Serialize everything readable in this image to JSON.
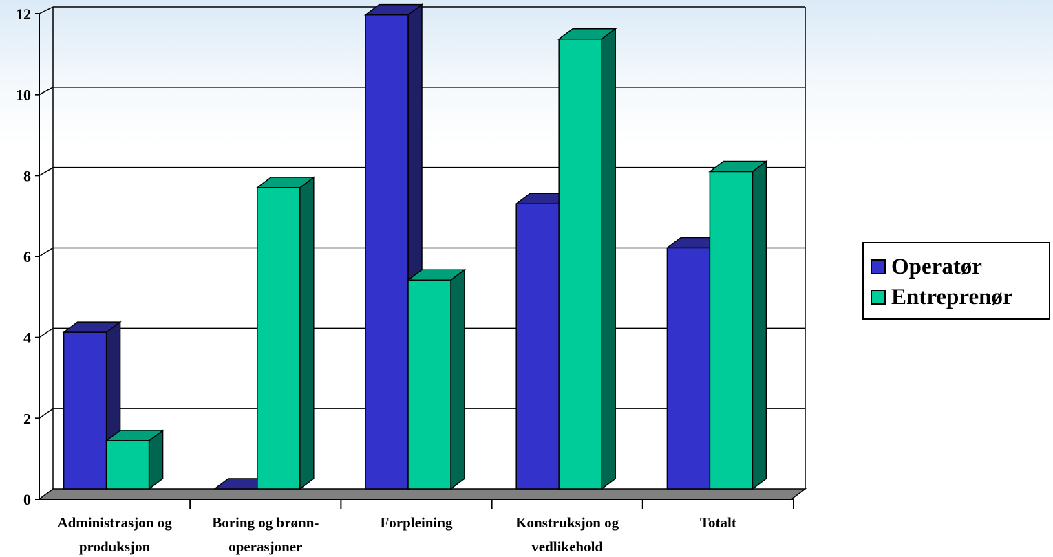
{
  "chart_data": {
    "type": "bar",
    "categories": [
      [
        "Administrasjon og",
        "produksjon"
      ],
      [
        "Boring og brønn-",
        "operasjoner"
      ],
      [
        "Forpleining"
      ],
      [
        "Konstruksjon og",
        "vedlikehold"
      ],
      [
        "Totalt"
      ]
    ],
    "series": [
      {
        "name": "Operatør",
        "values": [
          3.9,
          0,
          11.8,
          7.1,
          6.0
        ],
        "color": "#3333cc",
        "side": "#1f1f66",
        "top": "#28288f"
      },
      {
        "name": "Entreprenør",
        "values": [
          1.2,
          7.5,
          5.2,
          11.2,
          7.9
        ],
        "color": "#00cc99",
        "side": "#006650",
        "top": "#00a07a"
      }
    ],
    "ylim": [
      0,
      12
    ],
    "yticks": [
      "0",
      "2",
      "4",
      "6",
      "8",
      "10",
      "12"
    ],
    "grid": true,
    "legend_position": "right",
    "bar_style": "3d"
  }
}
